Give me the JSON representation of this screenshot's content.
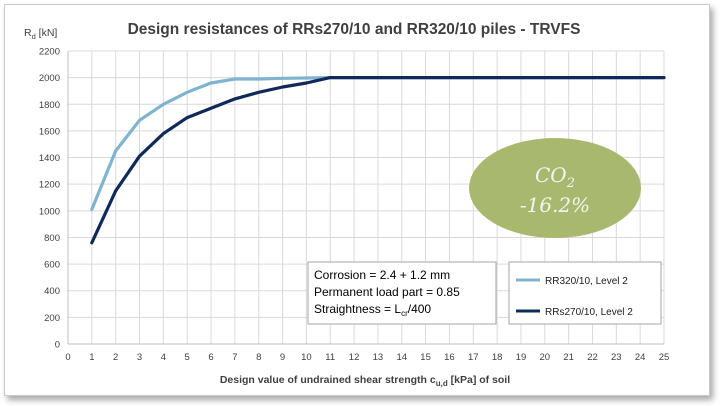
{
  "chart_data": {
    "type": "line",
    "title": "Design resistances of RRs270/10 and RR320/10 piles - TRVFS",
    "ylabel_main": "R",
    "ylabel_sub": "d",
    "ylabel_unit": " [kN]",
    "xlabel_pre": "Design value of undrained shear strength c",
    "xlabel_sub": "u,d",
    "xlabel_post": " [kPa]  of soil",
    "xlim": [
      0,
      25
    ],
    "ylim": [
      0,
      2200
    ],
    "x_ticks": [
      0,
      1,
      2,
      3,
      4,
      5,
      6,
      7,
      8,
      9,
      10,
      11,
      12,
      13,
      14,
      15,
      16,
      17,
      18,
      19,
      20,
      21,
      22,
      23,
      24,
      25
    ],
    "y_ticks": [
      0,
      200,
      400,
      600,
      800,
      1000,
      1200,
      1400,
      1600,
      1800,
      2000,
      2200
    ],
    "grid": true,
    "legend_position": "bottom-right",
    "series": [
      {
        "name": "RR320/10, Level 2",
        "color": "#7fb3cf",
        "x": [
          1,
          2,
          3,
          4,
          5,
          6,
          7,
          8,
          9,
          10,
          11,
          12,
          13,
          14,
          15,
          16,
          17,
          18,
          19,
          20,
          21,
          22,
          23,
          24,
          25
        ],
        "y": [
          1010,
          1450,
          1680,
          1800,
          1890,
          1960,
          1990,
          1990,
          1995,
          1997,
          2000,
          2000,
          2000,
          2000,
          2000,
          2000,
          2000,
          2000,
          2000,
          2000,
          2000,
          2000,
          2000,
          2000,
          2000
        ]
      },
      {
        "name": "RRs270/10, Level 2",
        "color": "#0f2a5a",
        "x": [
          1,
          2,
          3,
          4,
          5,
          6,
          7,
          8,
          9,
          10,
          11,
          12,
          13,
          14,
          15,
          16,
          17,
          18,
          19,
          20,
          21,
          22,
          23,
          24,
          25
        ],
        "y": [
          760,
          1150,
          1410,
          1580,
          1700,
          1770,
          1840,
          1890,
          1930,
          1960,
          2000,
          2000,
          2000,
          2000,
          2000,
          2000,
          2000,
          2000,
          2000,
          2000,
          2000,
          2000,
          2000,
          2000,
          2000
        ]
      }
    ],
    "annotation": {
      "line1": "Corrosion = 2.4 + 1.2 mm",
      "line2": "Permanent load part = 0.85",
      "line3_pre": "Straightness = L",
      "line3_sub": "cr",
      "line3_post": "/400"
    },
    "badge": {
      "line1_main": "CO",
      "line1_sub": "2",
      "line2": "-16.2%",
      "color": "#a9b86f"
    }
  }
}
